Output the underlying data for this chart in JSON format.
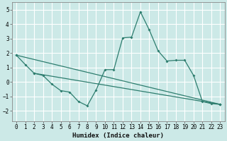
{
  "xlabel": "Humidex (Indice chaleur)",
  "bg_color": "#cce9e7",
  "grid_color": "#ffffff",
  "line_color": "#2d7d6e",
  "xlim": [
    -0.5,
    23.5
  ],
  "ylim": [
    -2.7,
    5.5
  ],
  "xticks": [
    0,
    1,
    2,
    3,
    4,
    5,
    6,
    7,
    8,
    9,
    10,
    11,
    12,
    13,
    14,
    15,
    16,
    17,
    18,
    19,
    20,
    21,
    22,
    23
  ],
  "yticks": [
    -2,
    -1,
    0,
    1,
    2,
    3,
    4,
    5
  ],
  "line1_x": [
    0,
    1,
    2,
    3,
    4,
    5,
    6,
    7,
    8,
    9,
    10,
    11,
    12,
    13,
    14,
    15,
    16,
    17,
    18,
    19,
    20,
    21,
    22,
    23
  ],
  "line1_y": [
    1.85,
    1.2,
    0.6,
    0.45,
    -0.15,
    -0.6,
    -0.7,
    -1.35,
    -1.65,
    -0.55,
    0.85,
    0.85,
    3.05,
    3.1,
    4.85,
    3.6,
    2.15,
    1.45,
    1.5,
    1.5,
    0.45,
    -1.35,
    -1.5,
    -1.55
  ],
  "line2_x": [
    0,
    23
  ],
  "line2_y": [
    1.85,
    -1.55
  ],
  "line3_x": [
    2,
    23
  ],
  "line3_y": [
    0.6,
    -1.55
  ]
}
